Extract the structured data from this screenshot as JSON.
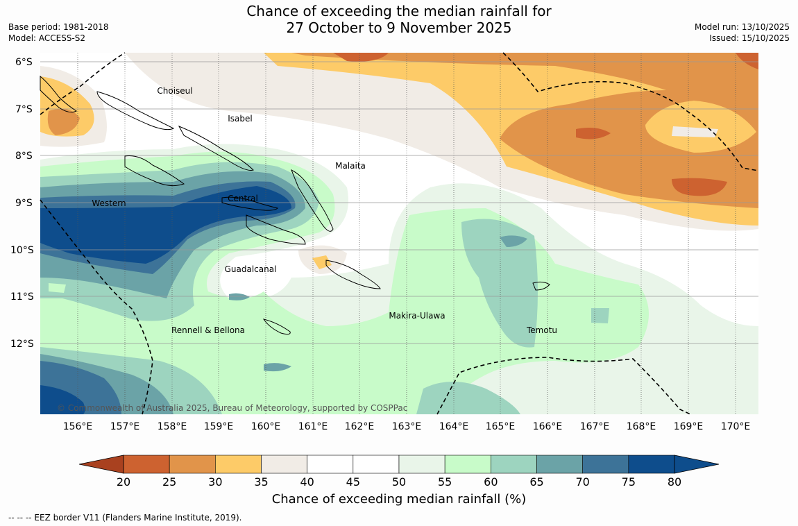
{
  "title": {
    "line1": "Chance of exceeding the median rainfall for",
    "line2": "27 October to 9 November 2025"
  },
  "meta_left": {
    "base_period": "Base period: 1981-2018",
    "model": "Model: ACCESS-S2"
  },
  "meta_right": {
    "model_run": "Model run: 13/10/2025",
    "issued": "Issued: 15/10/2025"
  },
  "map": {
    "lat_labels": [
      "6°S",
      "7°S",
      "8°S",
      "9°S",
      "10°S",
      "11°S",
      "12°S"
    ],
    "lon_labels": [
      "156°E",
      "157°E",
      "158°E",
      "159°E",
      "160°E",
      "161°E",
      "162°E",
      "163°E",
      "164°E",
      "165°E",
      "166°E",
      "167°E",
      "168°E",
      "169°E",
      "170°E"
    ],
    "regions": [
      "Choiseul",
      "Isabel",
      "Malaita",
      "Western",
      "Central",
      "Guadalcanal",
      "Makira-Ulawa",
      "Rennell & Bellona",
      "Temotu"
    ],
    "copyright": "© Commonwealth of Australia 2025, Bureau of Meteorology, supported by COSPPac"
  },
  "colorbar": {
    "ticks": [
      "20",
      "25",
      "30",
      "35",
      "40",
      "45",
      "50",
      "55",
      "60",
      "65",
      "70",
      "75",
      "80"
    ],
    "colors": [
      "#a9411f",
      "#cd6230",
      "#e1944a",
      "#fdcb68",
      "#f1ece6",
      "#ffffff",
      "#ffffff",
      "#e9f5e9",
      "#c8fbc9",
      "#9dd4bf",
      "#6ba3a7",
      "#3d7398",
      "#0e4d8c"
    ],
    "label": "Chance of exceeding median rainfall (%)"
  },
  "eez_note": "--  --  -- EEZ border V11 (Flanders Marine Institute, 2019)."
}
